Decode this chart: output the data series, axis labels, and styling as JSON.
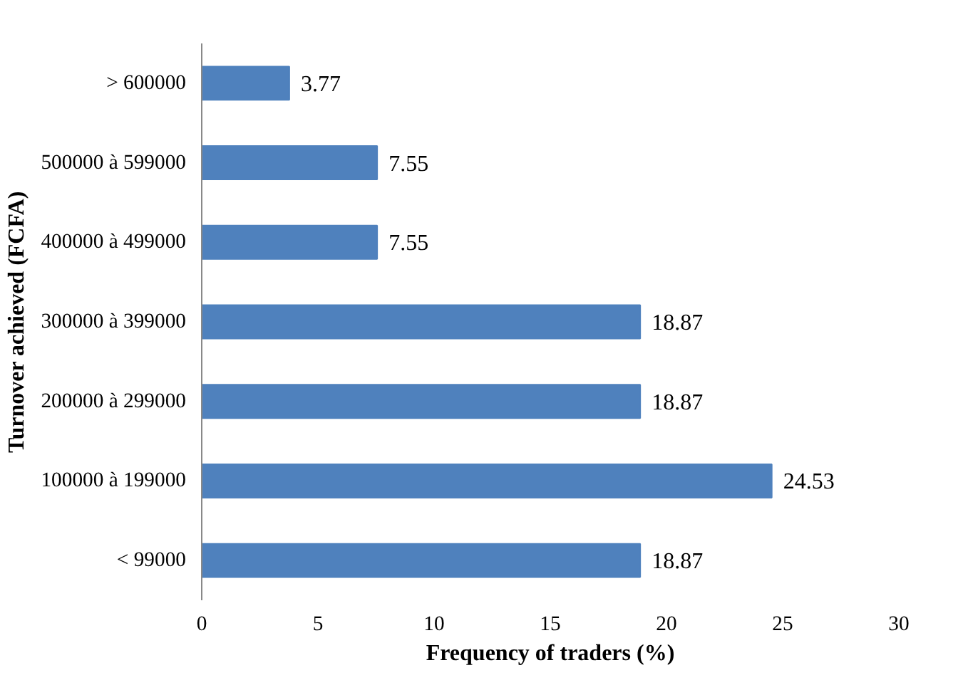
{
  "chart_data": {
    "type": "bar",
    "orientation": "horizontal",
    "categories": [
      "> 600000",
      "500000 à 599000",
      "400000 à 499000",
      "300000 à 399000",
      "200000 à 299000",
      "100000 à 199000",
      "< 99000"
    ],
    "values": [
      3.77,
      7.55,
      7.55,
      18.87,
      18.87,
      24.53,
      18.87
    ],
    "color": "#4f81bd",
    "xlim": [
      0,
      30
    ],
    "xticks": [
      0,
      5,
      10,
      15,
      20,
      25,
      30
    ],
    "xlabel": "Frequency of traders (%)",
    "ylabel": "Turnover achieved (FCFA)",
    "data_labels": true,
    "grid": false
  }
}
